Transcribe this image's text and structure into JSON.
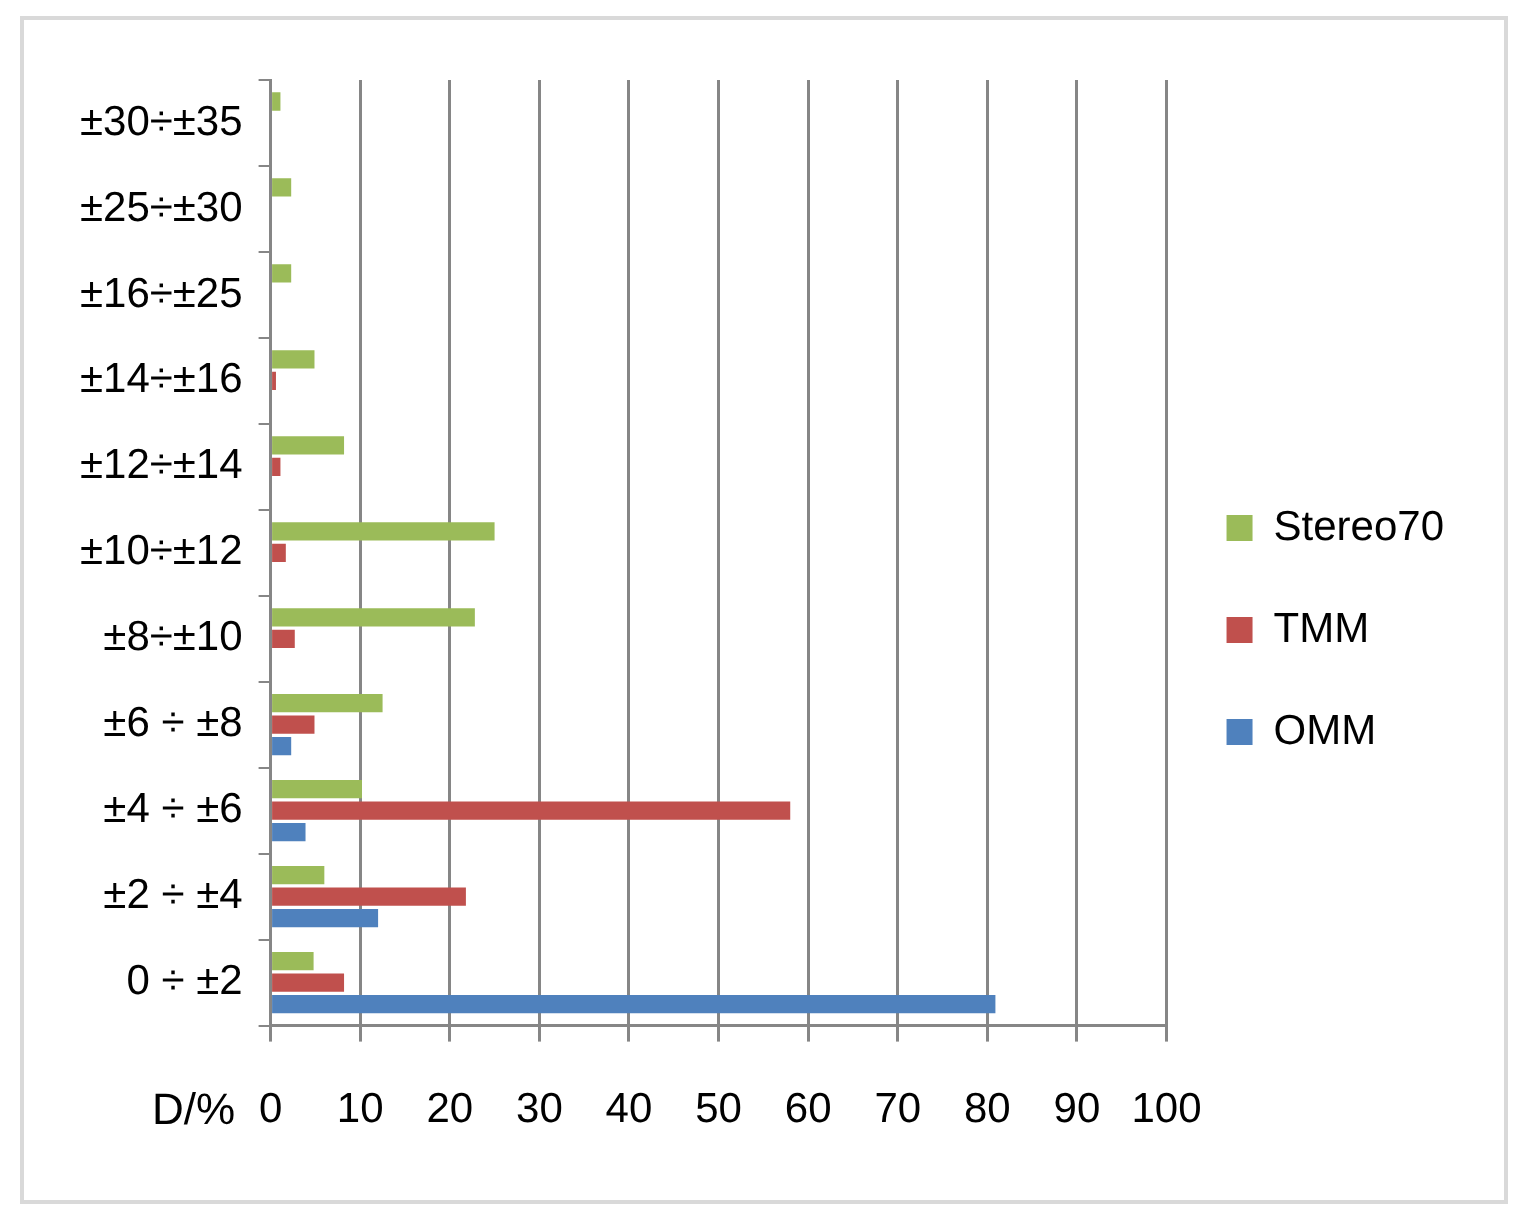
{
  "chart_data": {
    "type": "bar",
    "orientation": "horizontal",
    "xlabel": "D/%",
    "categories": [
      "±30÷±35",
      "±25÷±30",
      "±16÷±25",
      "±14÷±16",
      "±12÷±14",
      "±10÷±12",
      "±8÷±10",
      "±6 ÷ ±8",
      "±4 ÷ ±6",
      "±2 ÷ ±4",
      "0 ÷ ±2"
    ],
    "series": [
      {
        "name": "OMM",
        "color": "#4f81bd",
        "values": [
          0,
          0,
          0,
          0,
          0,
          0,
          0,
          2.3,
          3.9,
          12.0,
          80.9
        ]
      },
      {
        "name": "TMM",
        "color": "#c0504d",
        "values": [
          0,
          0,
          0,
          0.6,
          1.1,
          1.7,
          2.7,
          4.9,
          58.0,
          21.8,
          8.2
        ]
      },
      {
        "name": "Stereo70",
        "color": "#9bbb59",
        "values": [
          1.1,
          2.3,
          2.3,
          4.9,
          8.2,
          25.0,
          22.8,
          12.5,
          10.2,
          6.0,
          4.8
        ]
      }
    ],
    "xlim": [
      0,
      100
    ],
    "xticks": [
      0,
      10,
      20,
      30,
      40,
      50,
      60,
      70,
      80,
      90,
      100
    ],
    "grid": "x",
    "legend": "right"
  }
}
